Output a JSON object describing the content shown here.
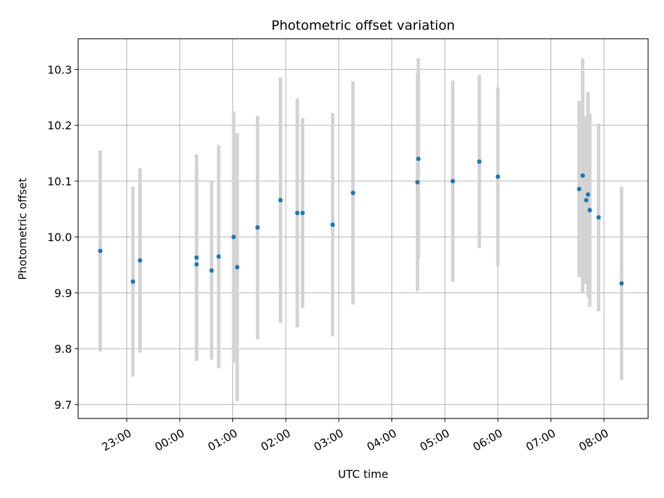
{
  "chart_data": {
    "type": "scatter",
    "title": "Photometric offset variation",
    "xlabel": "UTC time",
    "ylabel": "Photometric offset",
    "x_unit": "UTC time (HH:MM)",
    "xlim": [
      "22:05",
      "08:50"
    ],
    "ylim": [
      9.675,
      10.355
    ],
    "x_ticks": [
      "23:00",
      "00:00",
      "01:00",
      "02:00",
      "03:00",
      "04:00",
      "05:00",
      "06:00",
      "07:00",
      "08:00"
    ],
    "y_ticks": [
      9.7,
      9.8,
      9.9,
      10.0,
      10.1,
      10.2,
      10.3
    ],
    "y_tick_labels": [
      "9.7",
      "9.8",
      "9.9",
      "10.0",
      "10.1",
      "10.2",
      "10.3"
    ],
    "grid": true,
    "point_color": "#1f77b4",
    "errorbar_color": "#d3d3d3",
    "points": [
      {
        "x": "22:30",
        "y": 9.975,
        "yerr": 0.18
      },
      {
        "x": "23:07",
        "y": 9.92,
        "yerr": 0.17
      },
      {
        "x": "23:15",
        "y": 9.958,
        "yerr": 0.165
      },
      {
        "x": "00:19",
        "y": 9.963,
        "yerr": 0.185
      },
      {
        "x": "00:19",
        "y": 9.951,
        "yerr": 0.17
      },
      {
        "x": "00:36",
        "y": 9.94,
        "yerr": 0.16
      },
      {
        "x": "00:44",
        "y": 9.965,
        "yerr": 0.2
      },
      {
        "x": "01:01",
        "y": 10.0,
        "yerr": 0.225
      },
      {
        "x": "01:05",
        "y": 9.946,
        "yerr": 0.24
      },
      {
        "x": "01:28",
        "y": 10.017,
        "yerr": 0.2
      },
      {
        "x": "01:54",
        "y": 10.066,
        "yerr": 0.22
      },
      {
        "x": "02:13",
        "y": 10.043,
        "yerr": 0.205
      },
      {
        "x": "02:19",
        "y": 10.043,
        "yerr": 0.17
      },
      {
        "x": "02:53",
        "y": 10.022,
        "yerr": 0.2
      },
      {
        "x": "03:16",
        "y": 10.079,
        "yerr": 0.2
      },
      {
        "x": "04:29",
        "y": 10.098,
        "yerr": 0.195
      },
      {
        "x": "04:30",
        "y": 10.14,
        "yerr": 0.18
      },
      {
        "x": "05:09",
        "y": 10.1,
        "yerr": 0.18
      },
      {
        "x": "05:39",
        "y": 10.135,
        "yerr": 0.155
      },
      {
        "x": "06:00",
        "y": 10.108,
        "yerr": 0.16
      },
      {
        "x": "07:32",
        "y": 10.086,
        "yerr": 0.158
      },
      {
        "x": "07:36",
        "y": 10.11,
        "yerr": 0.21
      },
      {
        "x": "07:40",
        "y": 10.066,
        "yerr": 0.15
      },
      {
        "x": "07:42",
        "y": 10.076,
        "yerr": 0.184
      },
      {
        "x": "07:44",
        "y": 10.048,
        "yerr": 0.173
      },
      {
        "x": "07:54",
        "y": 10.035,
        "yerr": 0.168
      },
      {
        "x": "08:20",
        "y": 9.917,
        "yerr": 0.173
      }
    ]
  }
}
